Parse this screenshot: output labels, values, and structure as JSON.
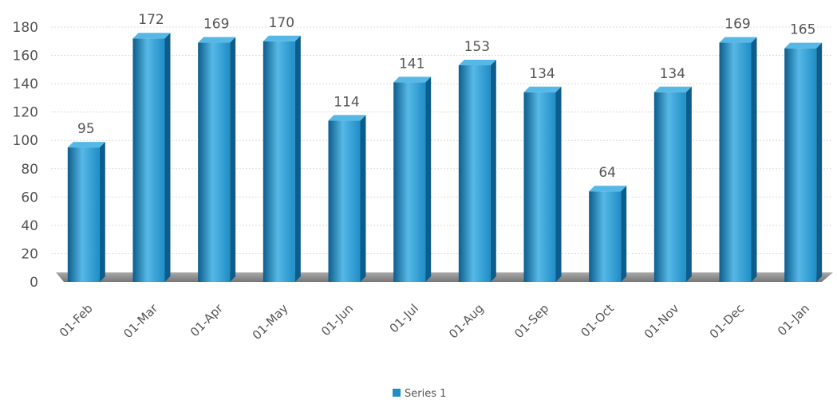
{
  "chart_data": {
    "type": "bar",
    "title": "",
    "xlabel": "",
    "ylabel": "",
    "categories": [
      "01-Feb",
      "01-Mar",
      "01-Apr",
      "01-May",
      "01-Jun",
      "01-Jul",
      "01-Aug",
      "01-Sep",
      "01-Oct",
      "01-Nov",
      "01-Dec",
      "01-Jan"
    ],
    "series": [
      {
        "name": "Series 1",
        "values": [
          95,
          172,
          169,
          170,
          114,
          141,
          153,
          134,
          64,
          134,
          169,
          165
        ]
      }
    ],
    "ylim": [
      0,
      180
    ],
    "yticks": [
      "0",
      "20",
      "40",
      "60",
      "80",
      "100",
      "120",
      "140",
      "160",
      "180"
    ],
    "data_labels": true,
    "grid": true,
    "legend": "bottom-center",
    "bar_style": "3d-cylinder",
    "colors": {
      "bar": "#1f8dc6",
      "bar_dark": "#0d5d8c",
      "bar_light": "#56b8e6",
      "floor": "#7a7a7a",
      "grid": "#dddddd",
      "text": "#555555"
    }
  }
}
